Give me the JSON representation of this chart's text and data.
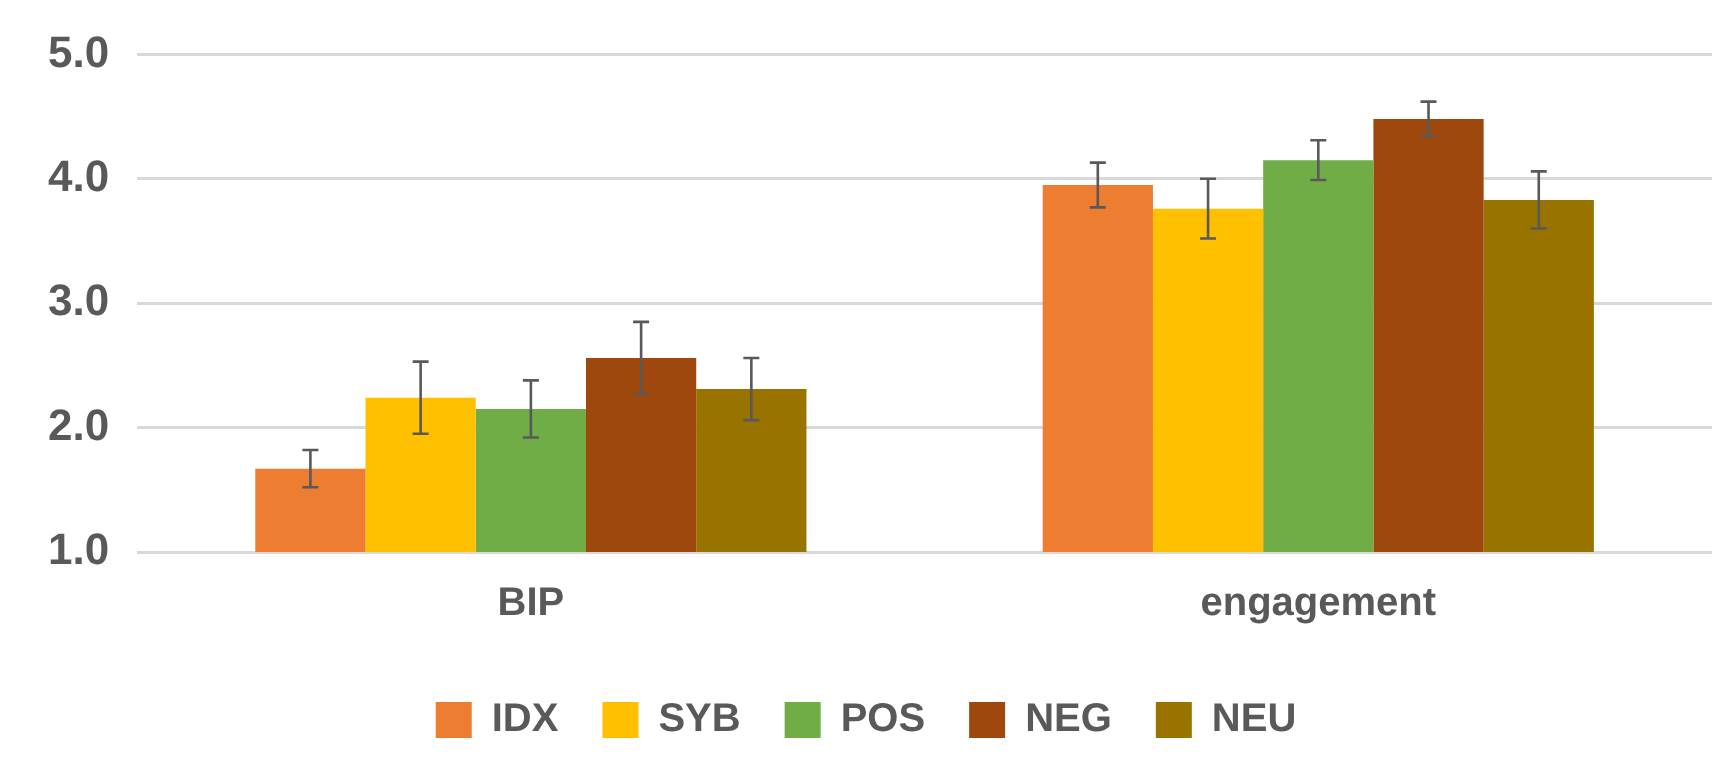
{
  "chart_data": {
    "type": "bar",
    "categories": [
      "BIP",
      "engagement"
    ],
    "series": [
      {
        "name": "IDX",
        "color": "#ed7d31",
        "values": [
          1.67,
          3.95
        ],
        "errors": [
          0.15,
          0.18
        ]
      },
      {
        "name": "SYB",
        "color": "#ffc000",
        "values": [
          2.24,
          3.76
        ],
        "errors": [
          0.29,
          0.24
        ]
      },
      {
        "name": "POS",
        "color": "#70ad47",
        "values": [
          2.15,
          4.15
        ],
        "errors": [
          0.23,
          0.16
        ]
      },
      {
        "name": "NEG",
        "color": "#9e480e",
        "values": [
          2.56,
          4.48
        ],
        "errors": [
          0.29,
          0.14
        ]
      },
      {
        "name": "NEU",
        "color": "#997300",
        "values": [
          2.31,
          3.83
        ],
        "errors": [
          0.25,
          0.23
        ]
      }
    ],
    "ylim": [
      1,
      5
    ],
    "yticks": [
      {
        "value": 1,
        "label": "1.0"
      },
      {
        "value": 2,
        "label": "2.0"
      },
      {
        "value": 3,
        "label": "3.0"
      },
      {
        "value": 4,
        "label": "4.0"
      },
      {
        "value": 5,
        "label": "5.0"
      }
    ],
    "grid": "y",
    "legend": "bottom"
  }
}
